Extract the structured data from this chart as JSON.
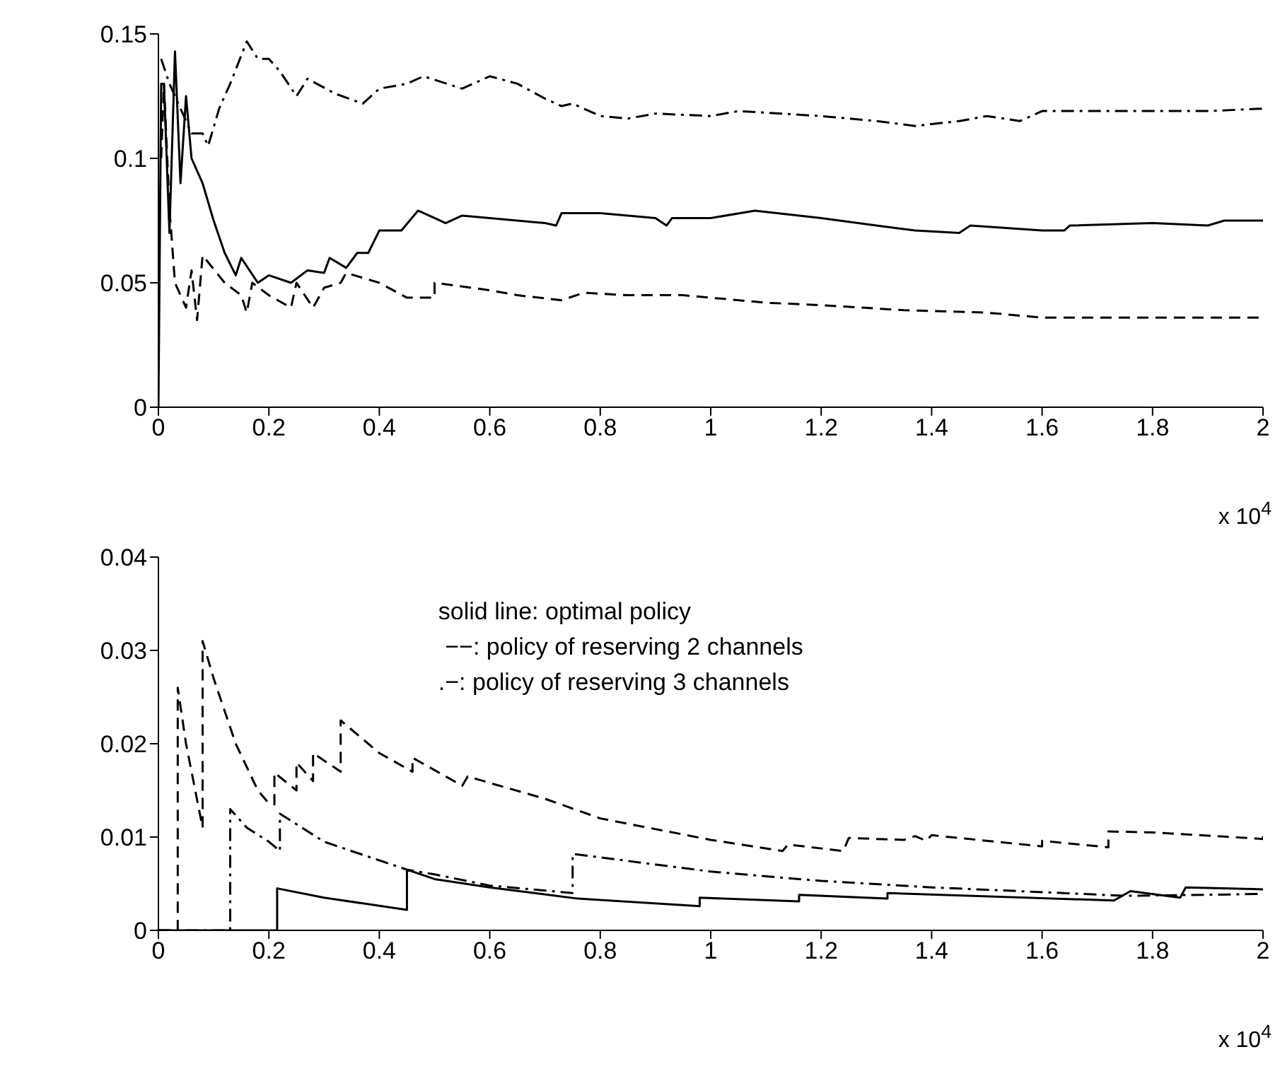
{
  "chart_data": [
    {
      "type": "line",
      "xlim": [
        0,
        2
      ],
      "xticks": [
        0,
        0.2,
        0.4,
        0.6,
        0.8,
        1,
        1.2,
        1.4,
        1.6,
        1.8,
        2
      ],
      "ylim": [
        0,
        0.15
      ],
      "yticks": [
        0,
        0.05,
        0.1,
        0.15
      ],
      "annotations": [
        "x 10$^{4}$"
      ],
      "series": [
        {
          "color": "#000000",
          "line_style": "solid",
          "x": [
            0,
            0.005,
            0.01,
            0.02,
            0.03,
            0.04,
            0.05,
            0.06,
            0.08,
            0.1,
            0.12,
            0.14,
            0.15,
            0.18,
            0.2,
            0.24,
            0.27,
            0.3,
            0.31,
            0.34,
            0.36,
            0.38,
            0.4,
            0.44,
            0.47,
            0.5,
            0.52,
            0.55,
            0.6,
            0.7,
            0.72,
            0.73,
            0.8,
            0.9,
            0.92,
            0.93,
            1,
            1.08,
            1.2,
            1.3,
            1.37,
            1.45,
            1.47,
            1.6,
            1.64,
            1.65,
            1.8,
            1.9,
            1.93,
            2
          ],
          "values": [
            0,
            0.13,
            0.13,
            0.07,
            0.143,
            0.09,
            0.125,
            0.1,
            0.09,
            0.075,
            0.062,
            0.053,
            0.06,
            0.05,
            0.053,
            0.05,
            0.055,
            0.054,
            0.06,
            0.056,
            0.062,
            0.062,
            0.071,
            0.071,
            0.079,
            0.076,
            0.074,
            0.077,
            0.076,
            0.074,
            0.073,
            0.078,
            0.078,
            0.076,
            0.073,
            0.076,
            0.076,
            0.079,
            0.076,
            0.073,
            0.071,
            0.07,
            0.073,
            0.071,
            0.071,
            0.073,
            0.074,
            0.073,
            0.075,
            0.075
          ]
        },
        {
          "color": "#000000",
          "line_style": "dashed",
          "x": [
            0.005,
            0.01,
            0.02,
            0.03,
            0.05,
            0.06,
            0.07,
            0.08,
            0.12,
            0.15,
            0.16,
            0.17,
            0.2,
            0.24,
            0.25,
            0.28,
            0.3,
            0.33,
            0.34,
            0.4,
            0.45,
            0.5,
            0.5,
            0.6,
            0.65,
            0.73,
            0.77,
            0.85,
            0.95,
            1.1,
            1.2,
            1.35,
            1.5,
            1.6,
            1.8,
            2
          ],
          "values": [
            0.1,
            0.13,
            0.08,
            0.05,
            0.04,
            0.055,
            0.035,
            0.061,
            0.05,
            0.045,
            0.038,
            0.05,
            0.045,
            0.04,
            0.05,
            0.04,
            0.048,
            0.05,
            0.054,
            0.05,
            0.044,
            0.044,
            0.05,
            0.047,
            0.045,
            0.043,
            0.046,
            0.045,
            0.045,
            0.042,
            0.041,
            0.039,
            0.038,
            0.036,
            0.036,
            0.036
          ]
        },
        {
          "color": "#000000",
          "line_style": "dashdot",
          "x": [
            0.005,
            0.02,
            0.04,
            0.06,
            0.08,
            0.09,
            0.11,
            0.13,
            0.16,
            0.18,
            0.2,
            0.22,
            0.25,
            0.27,
            0.32,
            0.37,
            0.4,
            0.45,
            0.48,
            0.55,
            0.6,
            0.65,
            0.7,
            0.73,
            0.75,
            0.8,
            0.85,
            0.9,
            1,
            1.05,
            1.2,
            1.3,
            1.37,
            1.45,
            1.5,
            1.56,
            1.6,
            1.8,
            1.9,
            2
          ],
          "values": [
            0.14,
            0.13,
            0.12,
            0.11,
            0.11,
            0.105,
            0.12,
            0.13,
            0.147,
            0.14,
            0.14,
            0.135,
            0.125,
            0.132,
            0.126,
            0.122,
            0.128,
            0.13,
            0.133,
            0.128,
            0.133,
            0.13,
            0.124,
            0.121,
            0.122,
            0.117,
            0.116,
            0.118,
            0.117,
            0.119,
            0.117,
            0.115,
            0.113,
            0.115,
            0.117,
            0.115,
            0.119,
            0.119,
            0.119,
            0.12
          ]
        }
      ]
    },
    {
      "type": "line",
      "xlim": [
        0,
        2
      ],
      "xticks": [
        0,
        0.2,
        0.4,
        0.6,
        0.8,
        1,
        1.2,
        1.4,
        1.6,
        1.8,
        2
      ],
      "ylim": [
        0,
        0.04
      ],
      "yticks": [
        0,
        0.01,
        0.02,
        0.03,
        0.04
      ],
      "annotations": [
        "x 10$^{4}$",
        "solid line: optimal policy",
        " −−: policy of reserving 2 channels",
        ".−: policy of reserving 3 channels"
      ],
      "series": [
        {
          "color": "#000000",
          "line_style": "solid",
          "x": [
            0,
            0.215,
            0.215,
            0.3,
            0.45,
            0.45,
            0.5,
            0.6,
            0.76,
            0.98,
            0.98,
            1.16,
            1.16,
            1.32,
            1.32,
            1.73,
            1.76,
            1.85,
            1.86,
            2
          ],
          "values": [
            0,
            0,
            0.0045,
            0.0035,
            0.0022,
            0.0065,
            0.0055,
            0.0046,
            0.0034,
            0.0026,
            0.0035,
            0.0031,
            0.0038,
            0.0034,
            0.004,
            0.0032,
            0.0042,
            0.0035,
            0.0046,
            0.0044
          ]
        },
        {
          "color": "#000000",
          "line_style": "dashed",
          "x": [
            0,
            0.035,
            0.035,
            0.05,
            0.07,
            0.08,
            0.08,
            0.1,
            0.14,
            0.18,
            0.2,
            0.21,
            0.21,
            0.25,
            0.25,
            0.28,
            0.28,
            0.33,
            0.33,
            0.4,
            0.46,
            0.46,
            0.55,
            0.56,
            0.6,
            0.7,
            0.8,
            1,
            1.13,
            1.14,
            1.24,
            1.25,
            1.35,
            1.37,
            1.39,
            1.4,
            1.6,
            1.6,
            1.72,
            1.72,
            1.8,
            2,
            2
          ],
          "values": [
            0,
            0,
            0.026,
            0.02,
            0.014,
            0.011,
            0.031,
            0.027,
            0.02,
            0.015,
            0.0136,
            0.0135,
            0.0169,
            0.015,
            0.018,
            0.016,
            0.019,
            0.017,
            0.0225,
            0.019,
            0.017,
            0.0185,
            0.0155,
            0.0165,
            0.0158,
            0.0141,
            0.012,
            0.0097,
            0.0085,
            0.0092,
            0.0085,
            0.0099,
            0.0097,
            0.0101,
            0.0096,
            0.0102,
            0.009,
            0.0096,
            0.0089,
            0.0106,
            0.0105,
            0.0098,
            0.0105
          ]
        },
        {
          "color": "#000000",
          "line_style": "dashdot",
          "x": [
            0,
            0.13,
            0.13,
            0.16,
            0.2,
            0.22,
            0.22,
            0.3,
            0.4,
            0.45,
            0.5,
            0.6,
            0.75,
            0.75,
            1,
            1.2,
            1.4,
            1.6,
            1.75,
            2
          ],
          "values": [
            0,
            0,
            0.013,
            0.011,
            0.0095,
            0.0085,
            0.0125,
            0.0095,
            0.0075,
            0.0065,
            0.006,
            0.0048,
            0.004,
            0.0082,
            0.0063,
            0.0053,
            0.0046,
            0.0041,
            0.0037,
            0.0039
          ]
        }
      ]
    }
  ]
}
